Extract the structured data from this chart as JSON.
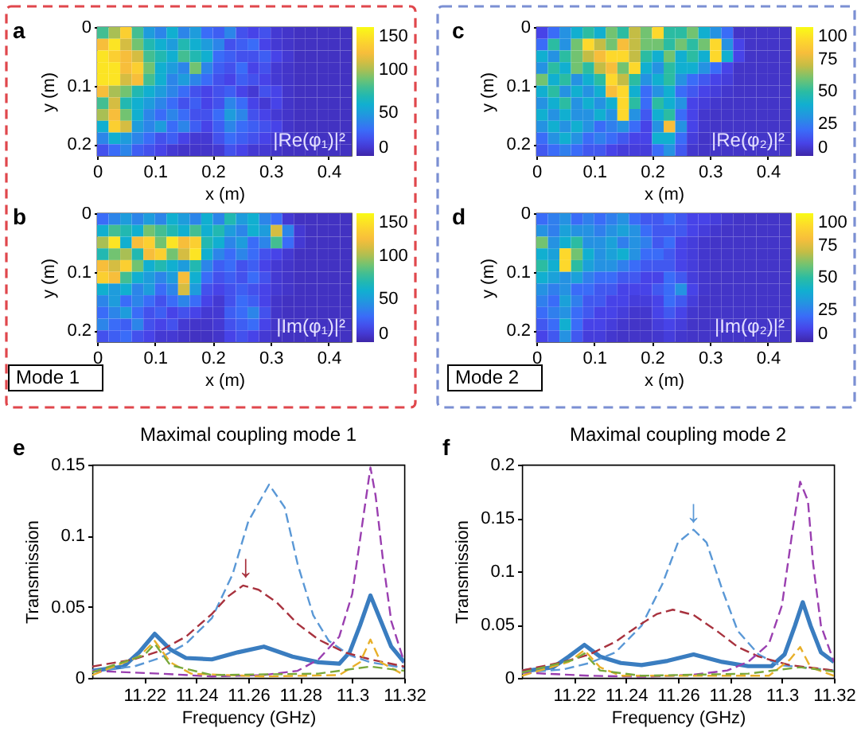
{
  "chart_data": [
    {
      "type": "heatmap",
      "xlabel": "x (m)",
      "ylabel": "y (m)",
      "annotations": [
        "a",
        "|Re(φ₁)|²"
      ],
      "x": [
        0.01,
        0.03,
        0.05,
        0.07,
        0.09,
        0.11,
        0.13,
        0.15,
        0.17,
        0.19,
        0.21,
        0.23,
        0.25,
        0.27,
        0.29,
        0.31,
        0.33,
        0.35,
        0.37,
        0.39,
        0.41,
        0.43
      ],
      "y": [
        0.01,
        0.03,
        0.05,
        0.07,
        0.09,
        0.11,
        0.13,
        0.15,
        0.17,
        0.19,
        0.21
      ],
      "xlim": [
        0,
        0.44
      ],
      "xticks": [
        0,
        0.1,
        0.2,
        0.3,
        0.4
      ],
      "ylim": [
        0.22,
        0
      ],
      "yticks": [
        0,
        0.1,
        0.2
      ],
      "clim": [
        0,
        150
      ],
      "cticks": [
        0,
        50,
        100,
        150
      ],
      "cells": [
        [
          80,
          100,
          130,
          80,
          50,
          40,
          60,
          40,
          50,
          30,
          25,
          40,
          20,
          15,
          20,
          10,
          8,
          6,
          6,
          6,
          6,
          6
        ],
        [
          120,
          140,
          110,
          90,
          70,
          60,
          50,
          70,
          60,
          50,
          40,
          20,
          25,
          30,
          15,
          10,
          8,
          6,
          6,
          6,
          6,
          6
        ],
        [
          140,
          130,
          120,
          110,
          80,
          70,
          60,
          80,
          70,
          60,
          30,
          25,
          20,
          20,
          25,
          15,
          10,
          6,
          6,
          6,
          6,
          6
        ],
        [
          140,
          140,
          120,
          130,
          90,
          60,
          50,
          40,
          90,
          40,
          25,
          20,
          30,
          15,
          20,
          10,
          8,
          6,
          6,
          6,
          6,
          6
        ],
        [
          140,
          140,
          110,
          120,
          80,
          60,
          40,
          50,
          40,
          30,
          20,
          15,
          25,
          20,
          15,
          10,
          8,
          6,
          6,
          6,
          6,
          6
        ],
        [
          120,
          100,
          90,
          70,
          60,
          50,
          40,
          30,
          20,
          15,
          20,
          25,
          15,
          10,
          20,
          15,
          8,
          6,
          6,
          6,
          6,
          6
        ],
        [
          80,
          110,
          70,
          60,
          50,
          40,
          30,
          20,
          25,
          15,
          20,
          40,
          30,
          15,
          10,
          15,
          8,
          6,
          6,
          6,
          6,
          6
        ],
        [
          100,
          120,
          90,
          60,
          40,
          30,
          40,
          30,
          20,
          20,
          30,
          50,
          40,
          20,
          15,
          10,
          8,
          6,
          6,
          6,
          6,
          6
        ],
        [
          60,
          130,
          110,
          50,
          40,
          50,
          30,
          40,
          25,
          15,
          25,
          40,
          30,
          25,
          20,
          15,
          8,
          6,
          6,
          6,
          6,
          6
        ],
        [
          40,
          60,
          50,
          40,
          30,
          20,
          25,
          15,
          10,
          10,
          20,
          30,
          25,
          20,
          15,
          10,
          8,
          6,
          6,
          6,
          6,
          6
        ],
        [
          20,
          30,
          40,
          25,
          20,
          15,
          10,
          8,
          8,
          8,
          10,
          20,
          15,
          10,
          10,
          8,
          6,
          6,
          6,
          6,
          6,
          6
        ]
      ]
    },
    {
      "type": "heatmap",
      "xlabel": "x (m)",
      "ylabel": "y (m)",
      "annotations": [
        "c",
        "|Re(φ₂)|²"
      ],
      "x": [
        0.01,
        0.03,
        0.05,
        0.07,
        0.09,
        0.11,
        0.13,
        0.15,
        0.17,
        0.19,
        0.21,
        0.23,
        0.25,
        0.27,
        0.29,
        0.31,
        0.33,
        0.35,
        0.37,
        0.39,
        0.41,
        0.43
      ],
      "y": [
        0.01,
        0.03,
        0.05,
        0.07,
        0.09,
        0.11,
        0.13,
        0.15,
        0.17,
        0.19,
        0.21
      ],
      "xlim": [
        0,
        0.44
      ],
      "xticks": [
        0,
        0.1,
        0.2,
        0.3,
        0.4
      ],
      "ylim": [
        0.22,
        0
      ],
      "yticks": [
        0,
        0.1,
        0.2
      ],
      "clim": [
        0,
        100
      ],
      "cticks": [
        0,
        25,
        50,
        75,
        100
      ],
      "cells": [
        [
          10,
          20,
          30,
          40,
          50,
          40,
          60,
          50,
          70,
          60,
          90,
          50,
          50,
          60,
          40,
          30,
          20,
          5,
          5,
          5,
          5,
          5
        ],
        [
          20,
          50,
          30,
          60,
          90,
          70,
          60,
          80,
          70,
          60,
          60,
          50,
          60,
          50,
          60,
          90,
          30,
          10,
          5,
          5,
          5,
          5
        ],
        [
          40,
          30,
          50,
          60,
          70,
          80,
          90,
          90,
          70,
          50,
          40,
          60,
          40,
          50,
          40,
          90,
          40,
          10,
          5,
          5,
          5,
          5
        ],
        [
          30,
          50,
          40,
          60,
          50,
          70,
          80,
          60,
          90,
          40,
          30,
          50,
          40,
          40,
          30,
          20,
          10,
          5,
          5,
          5,
          5,
          5
        ],
        [
          60,
          40,
          50,
          30,
          40,
          50,
          90,
          70,
          50,
          30,
          40,
          50,
          30,
          20,
          15,
          10,
          8,
          5,
          5,
          5,
          5,
          5
        ],
        [
          40,
          50,
          30,
          40,
          30,
          40,
          80,
          90,
          40,
          20,
          30,
          40,
          20,
          15,
          10,
          8,
          6,
          5,
          5,
          5,
          5,
          5
        ],
        [
          30,
          40,
          50,
          30,
          40,
          30,
          40,
          90,
          50,
          20,
          50,
          40,
          30,
          10,
          8,
          6,
          5,
          5,
          5,
          5,
          5,
          5
        ],
        [
          40,
          30,
          40,
          30,
          30,
          40,
          30,
          90,
          30,
          15,
          40,
          50,
          20,
          10,
          6,
          5,
          5,
          5,
          5,
          5,
          5,
          5
        ],
        [
          30,
          40,
          30,
          40,
          30,
          20,
          25,
          30,
          20,
          10,
          30,
          80,
          30,
          10,
          6,
          5,
          5,
          5,
          5,
          5,
          5,
          5
        ],
        [
          20,
          30,
          40,
          30,
          20,
          25,
          20,
          15,
          10,
          10,
          40,
          40,
          20,
          8,
          5,
          5,
          5,
          5,
          5,
          5,
          5,
          5
        ],
        [
          15,
          20,
          25,
          20,
          15,
          15,
          10,
          8,
          8,
          8,
          20,
          30,
          15,
          6,
          5,
          5,
          5,
          5,
          5,
          5,
          5,
          5
        ]
      ]
    },
    {
      "type": "heatmap",
      "xlabel": "x (m)",
      "ylabel": "y (m)",
      "annotations": [
        "b",
        "|Im(φ₁)|²",
        "Mode 1"
      ],
      "x": [
        0.01,
        0.03,
        0.05,
        0.07,
        0.09,
        0.11,
        0.13,
        0.15,
        0.17,
        0.19,
        0.21,
        0.23,
        0.25,
        0.27,
        0.29,
        0.31,
        0.33,
        0.35,
        0.37,
        0.39,
        0.41,
        0.43
      ],
      "y": [
        0.01,
        0.03,
        0.05,
        0.07,
        0.09,
        0.11,
        0.13,
        0.15,
        0.17,
        0.19,
        0.21
      ],
      "xlim": [
        0,
        0.44
      ],
      "xticks": [
        0,
        0.1,
        0.2,
        0.3,
        0.4
      ],
      "ylim": [
        0.22,
        0
      ],
      "yticks": [
        0,
        0.1,
        0.2
      ],
      "clim": [
        0,
        150
      ],
      "cticks": [
        0,
        50,
        100,
        150
      ],
      "cells": [
        [
          30,
          40,
          50,
          40,
          50,
          40,
          60,
          50,
          40,
          60,
          40,
          70,
          50,
          60,
          40,
          30,
          10,
          6,
          6,
          6,
          6,
          6
        ],
        [
          60,
          80,
          70,
          60,
          90,
          80,
          70,
          60,
          80,
          60,
          70,
          50,
          40,
          60,
          50,
          110,
          40,
          10,
          6,
          6,
          6,
          6
        ],
        [
          100,
          140,
          60,
          120,
          130,
          90,
          140,
          120,
          130,
          70,
          60,
          40,
          50,
          30,
          40,
          80,
          30,
          10,
          6,
          6,
          6,
          6
        ],
        [
          70,
          90,
          100,
          70,
          120,
          130,
          90,
          110,
          140,
          60,
          40,
          30,
          40,
          30,
          20,
          15,
          10,
          6,
          6,
          6,
          6,
          6
        ],
        [
          120,
          110,
          130,
          90,
          60,
          70,
          60,
          50,
          70,
          40,
          25,
          30,
          20,
          25,
          15,
          10,
          8,
          6,
          6,
          6,
          6,
          6
        ],
        [
          130,
          120,
          80,
          60,
          50,
          40,
          50,
          120,
          60,
          30,
          20,
          25,
          20,
          30,
          20,
          10,
          8,
          6,
          6,
          6,
          6,
          6
        ],
        [
          60,
          50,
          60,
          40,
          50,
          30,
          40,
          110,
          50,
          20,
          15,
          20,
          25,
          20,
          15,
          10,
          8,
          6,
          6,
          6,
          6,
          6
        ],
        [
          40,
          50,
          30,
          40,
          30,
          20,
          30,
          40,
          30,
          15,
          10,
          20,
          30,
          25,
          15,
          8,
          6,
          6,
          6,
          6,
          6,
          6
        ],
        [
          30,
          40,
          50,
          30,
          20,
          25,
          15,
          20,
          15,
          10,
          10,
          25,
          30,
          40,
          20,
          8,
          6,
          6,
          6,
          6,
          6,
          6
        ],
        [
          40,
          30,
          25,
          40,
          20,
          15,
          20,
          10,
          8,
          8,
          10,
          20,
          25,
          30,
          15,
          8,
          6,
          6,
          6,
          6,
          6,
          6
        ],
        [
          20,
          25,
          30,
          20,
          15,
          10,
          10,
          8,
          6,
          6,
          8,
          15,
          20,
          15,
          10,
          6,
          6,
          6,
          6,
          6,
          6,
          6
        ]
      ]
    },
    {
      "type": "heatmap",
      "xlabel": "x (m)",
      "ylabel": "y (m)",
      "annotations": [
        "d",
        "|Im(φ₂)|²",
        "Mode 2"
      ],
      "x": [
        0.01,
        0.03,
        0.05,
        0.07,
        0.09,
        0.11,
        0.13,
        0.15,
        0.17,
        0.19,
        0.21,
        0.23,
        0.25,
        0.27,
        0.29,
        0.31,
        0.33,
        0.35,
        0.37,
        0.39,
        0.41,
        0.43
      ],
      "y": [
        0.01,
        0.03,
        0.05,
        0.07,
        0.09,
        0.11,
        0.13,
        0.15,
        0.17,
        0.19,
        0.21
      ],
      "xlim": [
        0,
        0.44
      ],
      "xticks": [
        0,
        0.1,
        0.2,
        0.3,
        0.4
      ],
      "ylim": [
        0.22,
        0
      ],
      "yticks": [
        0,
        0.1,
        0.2
      ],
      "clim": [
        0,
        100
      ],
      "cticks": [
        0,
        25,
        50,
        75,
        100
      ],
      "cells": [
        [
          20,
          25,
          30,
          20,
          25,
          20,
          25,
          30,
          20,
          15,
          15,
          20,
          15,
          10,
          10,
          8,
          6,
          5,
          5,
          5,
          5,
          5
        ],
        [
          30,
          25,
          35,
          30,
          30,
          25,
          30,
          35,
          30,
          20,
          15,
          15,
          15,
          10,
          8,
          6,
          5,
          5,
          5,
          5,
          5,
          5
        ],
        [
          60,
          30,
          40,
          50,
          30,
          30,
          35,
          25,
          30,
          25,
          15,
          20,
          10,
          8,
          6,
          5,
          5,
          5,
          5,
          5,
          5,
          5
        ],
        [
          40,
          35,
          90,
          60,
          40,
          30,
          35,
          40,
          30,
          20,
          20,
          15,
          10,
          8,
          6,
          5,
          5,
          5,
          5,
          5,
          5,
          5
        ],
        [
          50,
          40,
          90,
          50,
          35,
          30,
          30,
          25,
          20,
          15,
          15,
          15,
          10,
          8,
          6,
          5,
          5,
          5,
          5,
          5,
          5,
          5
        ],
        [
          40,
          35,
          30,
          35,
          25,
          20,
          20,
          15,
          15,
          10,
          10,
          20,
          15,
          8,
          6,
          5,
          5,
          5,
          5,
          5,
          5,
          5
        ],
        [
          30,
          25,
          30,
          20,
          20,
          15,
          15,
          10,
          10,
          10,
          15,
          20,
          30,
          10,
          6,
          5,
          5,
          5,
          5,
          5,
          5,
          5
        ],
        [
          25,
          20,
          35,
          25,
          15,
          15,
          10,
          10,
          8,
          8,
          10,
          20,
          15,
          8,
          5,
          5,
          5,
          5,
          5,
          5,
          5,
          5
        ],
        [
          20,
          25,
          30,
          20,
          15,
          10,
          10,
          8,
          6,
          6,
          10,
          15,
          10,
          6,
          5,
          5,
          5,
          5,
          5,
          5,
          5,
          5
        ],
        [
          15,
          20,
          40,
          20,
          10,
          10,
          8,
          6,
          5,
          5,
          8,
          10,
          8,
          5,
          5,
          5,
          5,
          5,
          5,
          5,
          5,
          5
        ],
        [
          10,
          15,
          30,
          15,
          8,
          8,
          6,
          5,
          5,
          5,
          6,
          8,
          6,
          5,
          5,
          5,
          5,
          5,
          5,
          5,
          5,
          5
        ]
      ]
    },
    {
      "type": "line",
      "title": "Maximal coupling mode 1",
      "xlabel": "Frequency (GHz)",
      "ylabel": "Transmission",
      "annotations": [
        "e",
        {
          "text": "↓",
          "x": 11.259,
          "y": 0.071
        }
      ],
      "xlim": [
        11.2,
        11.32
      ],
      "xticks": [
        11.22,
        11.24,
        11.26,
        11.28,
        11.3,
        11.32
      ],
      "ylim": [
        0,
        0.15
      ],
      "yticks": [
        0,
        0.05,
        0.1,
        0.15
      ],
      "marker": "none",
      "series": [
        {
          "color": "#3a7dc0",
          "line_style": "solid",
          "x": [
            11.2,
            11.212,
            11.218,
            11.224,
            11.23,
            11.236,
            11.246,
            11.256,
            11.266,
            11.277,
            11.287,
            11.295,
            11.299,
            11.303,
            11.307,
            11.311,
            11.315,
            11.32
          ],
          "values": [
            0.005,
            0.008,
            0.018,
            0.031,
            0.02,
            0.014,
            0.013,
            0.018,
            0.022,
            0.015,
            0.011,
            0.01,
            0.018,
            0.037,
            0.058,
            0.04,
            0.022,
            0.011
          ]
        },
        {
          "color": "#5a98d6",
          "line_style": "dashed",
          "x": [
            11.2,
            11.216,
            11.226,
            11.236,
            11.246,
            11.254,
            11.26,
            11.268,
            11.274,
            11.279,
            11.285,
            11.291,
            11.299,
            11.307,
            11.32
          ],
          "values": [
            0.005,
            0.008,
            0.014,
            0.024,
            0.042,
            0.073,
            0.11,
            0.136,
            0.12,
            0.08,
            0.044,
            0.026,
            0.016,
            0.011,
            0.007
          ]
        },
        {
          "color": "#a8323e",
          "line_style": "dashed",
          "x": [
            11.2,
            11.216,
            11.226,
            11.236,
            11.246,
            11.252,
            11.258,
            11.264,
            11.271,
            11.279,
            11.287,
            11.297,
            11.307,
            11.32
          ],
          "values": [
            0.008,
            0.013,
            0.019,
            0.029,
            0.045,
            0.057,
            0.065,
            0.062,
            0.053,
            0.038,
            0.027,
            0.018,
            0.013,
            0.008
          ]
        },
        {
          "color": "#9a3fb0",
          "line_style": "dashed",
          "x": [
            11.2,
            11.226,
            11.246,
            11.266,
            11.279,
            11.287,
            11.295,
            11.3,
            11.304,
            11.307,
            11.309,
            11.312,
            11.315,
            11.32
          ],
          "values": [
            0.005,
            0.003,
            0.001,
            0.002,
            0.005,
            0.013,
            0.029,
            0.059,
            0.11,
            0.148,
            0.128,
            0.08,
            0.04,
            0.011
          ]
        },
        {
          "color": "#e8b02a",
          "line_style": "dashed",
          "x": [
            11.2,
            11.218,
            11.224,
            11.23,
            11.238,
            11.266,
            11.295,
            11.303,
            11.307,
            11.311,
            11.32
          ],
          "values": [
            0.002,
            0.015,
            0.026,
            0.011,
            0.003,
            0.001,
            0.002,
            0.011,
            0.027,
            0.011,
            0.002
          ]
        },
        {
          "color": "#79a83a",
          "line_style": "dashed",
          "x": [
            11.2,
            11.22,
            11.224,
            11.23,
            11.246,
            11.287,
            11.307,
            11.32
          ],
          "values": [
            0.004,
            0.016,
            0.024,
            0.009,
            0.002,
            0.003,
            0.008,
            0.005
          ]
        }
      ]
    },
    {
      "type": "line",
      "title": "Maximal coupling mode 2",
      "xlabel": "Frequency (GHz)",
      "ylabel": "Transmission",
      "annotations": [
        "f",
        {
          "text": "↓",
          "x": 11.266,
          "y": 0.146
        }
      ],
      "xlim": [
        11.2,
        11.32
      ],
      "xticks": [
        11.22,
        11.24,
        11.26,
        11.28,
        11.3,
        11.32
      ],
      "ylim": [
        0,
        0.2
      ],
      "yticks": [
        0,
        0.05,
        0.1,
        0.15,
        0.2
      ],
      "marker": "none",
      "series": [
        {
          "color": "#3a7dc0",
          "line_style": "solid",
          "x": [
            11.2,
            11.212,
            11.218,
            11.224,
            11.23,
            11.238,
            11.246,
            11.256,
            11.266,
            11.277,
            11.287,
            11.296,
            11.301,
            11.305,
            11.308,
            11.311,
            11.315,
            11.32
          ],
          "values": [
            0.006,
            0.01,
            0.02,
            0.031,
            0.02,
            0.014,
            0.012,
            0.016,
            0.022,
            0.015,
            0.011,
            0.011,
            0.022,
            0.049,
            0.071,
            0.049,
            0.024,
            0.015
          ]
        },
        {
          "color": "#5a98d6",
          "line_style": "dashed",
          "x": [
            11.2,
            11.216,
            11.226,
            11.236,
            11.246,
            11.254,
            11.26,
            11.266,
            11.271,
            11.277,
            11.283,
            11.291,
            11.299,
            11.32
          ],
          "values": [
            0.005,
            0.008,
            0.014,
            0.024,
            0.049,
            0.088,
            0.127,
            0.139,
            0.127,
            0.083,
            0.044,
            0.022,
            0.012,
            0.007
          ]
        },
        {
          "color": "#a8323e",
          "line_style": "dashed",
          "x": [
            11.2,
            11.216,
            11.226,
            11.236,
            11.246,
            11.252,
            11.258,
            11.266,
            11.275,
            11.283,
            11.291,
            11.303,
            11.32
          ],
          "values": [
            0.007,
            0.015,
            0.022,
            0.034,
            0.051,
            0.06,
            0.064,
            0.059,
            0.044,
            0.029,
            0.02,
            0.012,
            0.007
          ]
        },
        {
          "color": "#9a3fb0",
          "line_style": "dashed",
          "x": [
            11.2,
            11.226,
            11.246,
            11.266,
            11.279,
            11.287,
            11.295,
            11.3,
            11.304,
            11.307,
            11.31,
            11.312,
            11.315,
            11.32
          ],
          "values": [
            0.005,
            0.002,
            0.001,
            0.003,
            0.007,
            0.015,
            0.032,
            0.068,
            0.137,
            0.184,
            0.166,
            0.107,
            0.049,
            0.015
          ]
        },
        {
          "color": "#e8b02a",
          "line_style": "dashed",
          "x": [
            11.2,
            11.218,
            11.224,
            11.23,
            11.238,
            11.295,
            11.303,
            11.307,
            11.311,
            11.32
          ],
          "values": [
            0.002,
            0.015,
            0.026,
            0.01,
            0.002,
            0.002,
            0.017,
            0.029,
            0.01,
            0.002
          ]
        },
        {
          "color": "#79a83a",
          "line_style": "dashed",
          "x": [
            11.2,
            11.22,
            11.224,
            11.23,
            11.246,
            11.287,
            11.307,
            11.32
          ],
          "values": [
            0.005,
            0.017,
            0.023,
            0.007,
            0.002,
            0.004,
            0.01,
            0.006
          ]
        }
      ]
    }
  ]
}
